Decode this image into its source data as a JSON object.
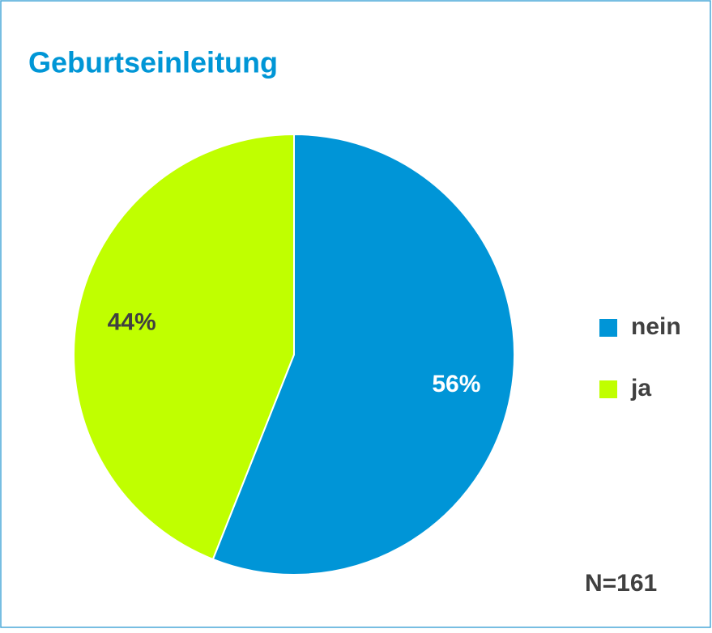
{
  "chart_data": {
    "type": "pie",
    "title": "Geburtseinleitung",
    "categories": [
      "nein",
      "ja"
    ],
    "values": [
      56,
      44
    ],
    "value_labels": [
      "56%",
      "44%"
    ],
    "colors": [
      "#0095d7",
      "#c0ff00"
    ],
    "label_colors": [
      "#ffffff",
      "#404040"
    ],
    "legend": "right",
    "annotation": "N=161"
  }
}
